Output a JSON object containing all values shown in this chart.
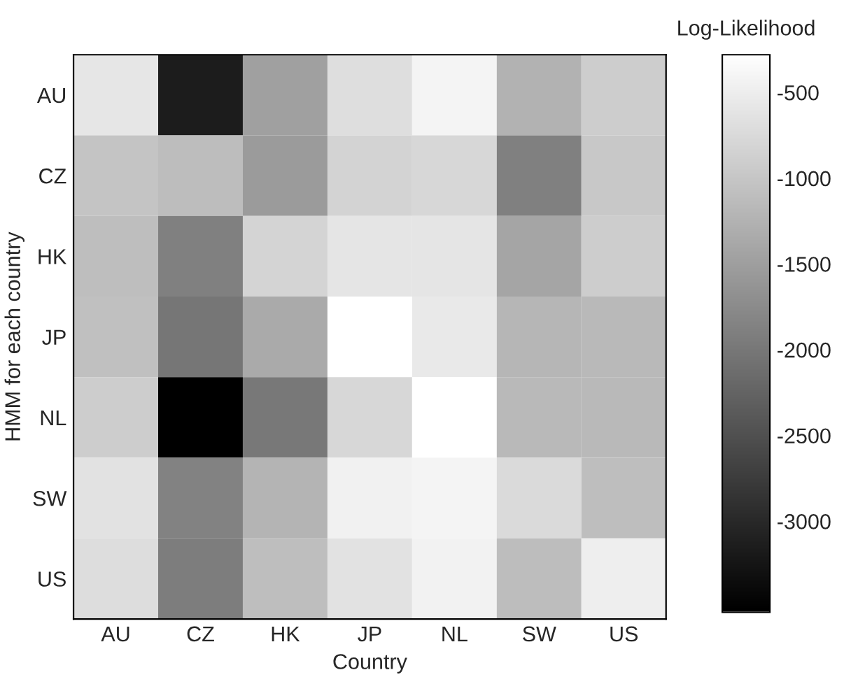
{
  "chart_data": {
    "type": "heatmap",
    "xlabel": "Country",
    "ylabel": "HMM for each country",
    "clabel": "Log-Likelihood",
    "categories": [
      "AU",
      "CZ",
      "HK",
      "JP",
      "NL",
      "SW",
      "US"
    ],
    "y_categories": [
      "AU",
      "CZ",
      "HK",
      "JP",
      "NL",
      "SW",
      "US"
    ],
    "cells": [
      [
        -600,
        -3170,
        -1490,
        -700,
        -430,
        -1260,
        -920
      ],
      [
        -1040,
        -1130,
        -1550,
        -850,
        -790,
        -1900,
        -980
      ],
      [
        -1110,
        -1900,
        -830,
        -620,
        -620,
        -1430,
        -920
      ],
      [
        -1080,
        -2030,
        -1360,
        -280,
        -570,
        -1210,
        -1170
      ],
      [
        -920,
        -3530,
        -2000,
        -790,
        -280,
        -1170,
        -1170
      ],
      [
        -660,
        -1870,
        -1240,
        -470,
        -430,
        -750,
        -1110
      ],
      [
        -720,
        -1940,
        -1110,
        -660,
        -450,
        -1130,
        -500
      ]
    ],
    "clim": [
      -3530,
      -280
    ],
    "cticks": [
      -500,
      -1000,
      -1500,
      -2000,
      -2500,
      -3000
    ]
  }
}
